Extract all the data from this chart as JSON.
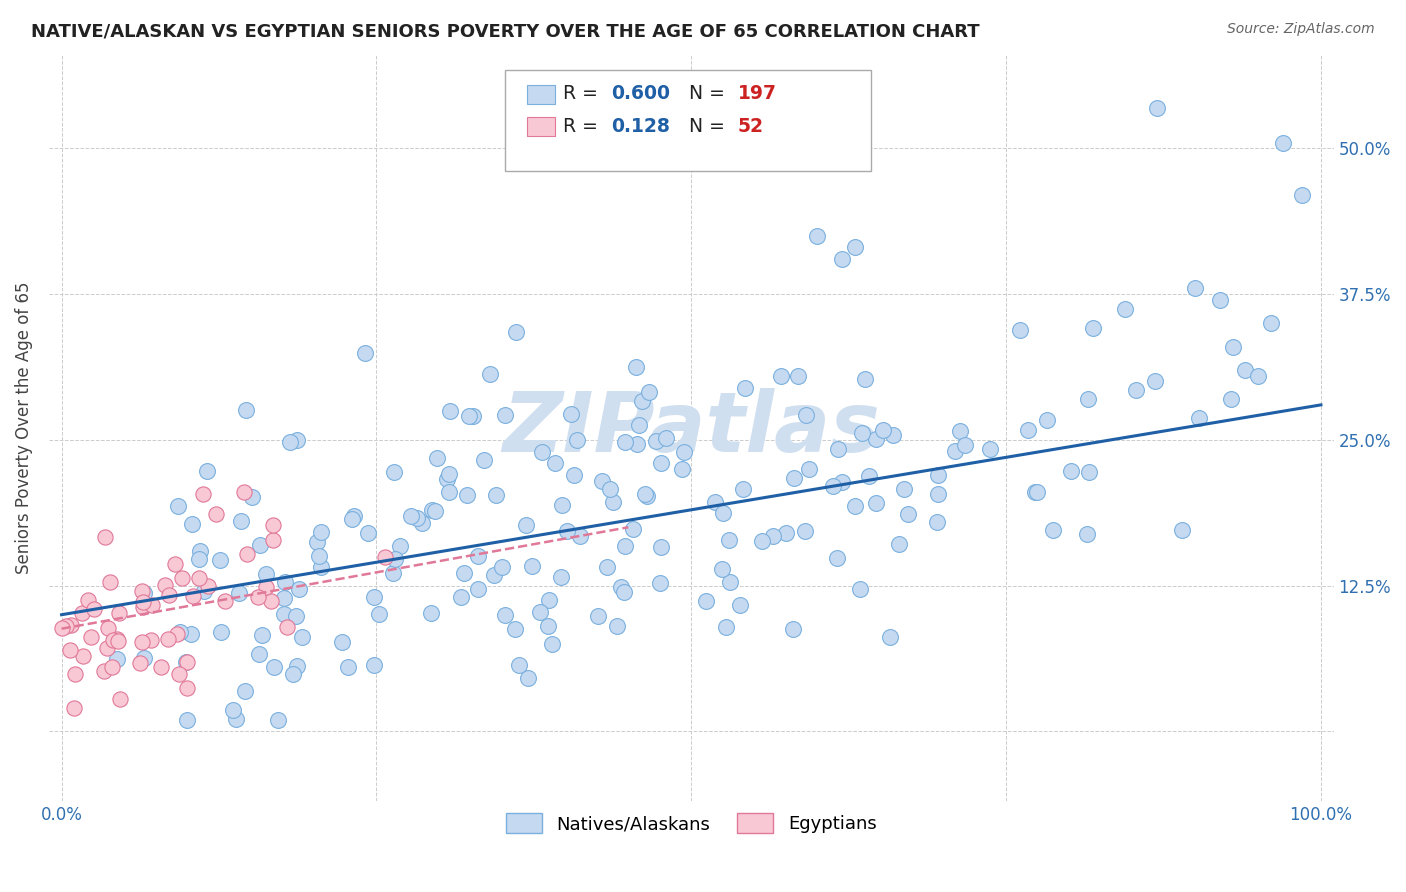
{
  "title": "NATIVE/ALASKAN VS EGYPTIAN SENIORS POVERTY OVER THE AGE OF 65 CORRELATION CHART",
  "source": "Source: ZipAtlas.com",
  "ylabel": "Seniors Poverty Over the Age of 65",
  "xlim": [
    -0.01,
    1.01
  ],
  "ylim": [
    -0.06,
    0.58
  ],
  "xticks": [
    0.0,
    0.25,
    0.5,
    0.75,
    1.0
  ],
  "yticks": [
    0.0,
    0.125,
    0.25,
    0.375,
    0.5
  ],
  "ytick_labels_right": [
    "",
    "12.5%",
    "25.0%",
    "37.5%",
    "50.0%"
  ],
  "xtick_labels": [
    "0.0%",
    "",
    "",
    "",
    "100.0%"
  ],
  "native_R": 0.6,
  "native_N": 197,
  "egyptian_R": 0.128,
  "egyptian_N": 52,
  "native_color": "#c5d9f1",
  "native_edge_color": "#7ab0de",
  "egyptian_color": "#f9c8d5",
  "egyptian_edge_color": "#e07898",
  "native_line_color": "#1f5fa6",
  "egyptian_line_color": "#e07898",
  "native_line_x": [
    0.0,
    1.0
  ],
  "native_line_y": [
    0.1,
    0.28
  ],
  "egyptian_line_x": [
    0.0,
    0.45
  ],
  "egyptian_line_y": [
    0.088,
    0.175
  ],
  "watermark": "ZIPatlas",
  "watermark_color": "#d0dff0",
  "background_color": "#ffffff",
  "legend_R_color": "#1f5fa6",
  "legend_N_color": "#cc2222",
  "legend_text_color": "#222222",
  "grid_color": "#cccccc",
  "title_fontsize": 13,
  "source_fontsize": 10,
  "tick_color": "#3070b0"
}
